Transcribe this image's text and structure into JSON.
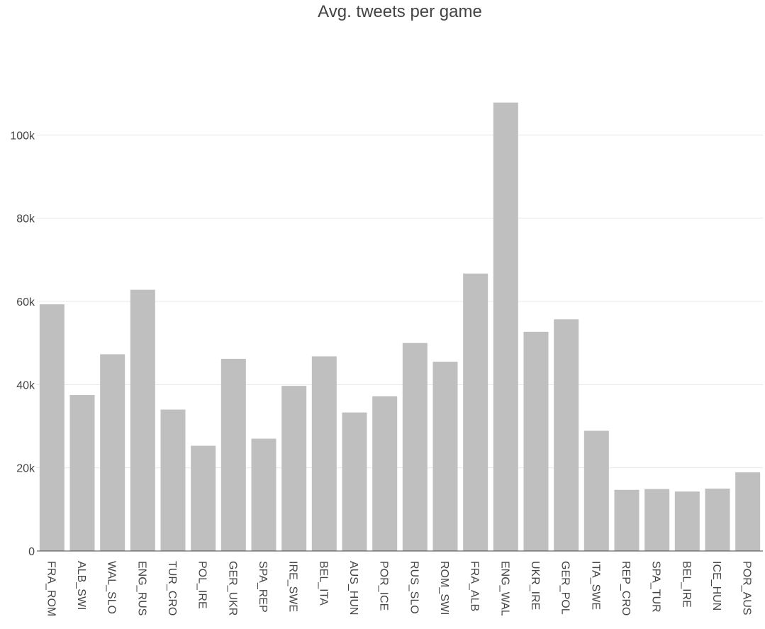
{
  "chart_data": {
    "type": "bar",
    "title": "Avg. tweets per game",
    "xlabel": "",
    "ylabel": "",
    "categories": [
      "FRA_ROM",
      "ALB_SWI",
      "WAL_SLO",
      "ENG_RUS",
      "TUR_CRO",
      "POL_IRE",
      "GER_UKR",
      "SPA_REP",
      "IRE_SWE",
      "BEL_ITA",
      "AUS_HUN",
      "POR_ICE",
      "RUS_SLO",
      "ROM_SWI",
      "FRA_ALB",
      "ENG_WAL",
      "UKR_IRE",
      "GER_POL",
      "ITA_SWE",
      "REP_CRO",
      "SPA_TUR",
      "BEL_IRE",
      "ICE_HUN",
      "POR_AUS"
    ],
    "values": [
      59300,
      37500,
      47300,
      62800,
      34000,
      25300,
      46200,
      27000,
      39700,
      46800,
      33300,
      37200,
      50000,
      45500,
      66700,
      107800,
      52700,
      55700,
      28900,
      14700,
      14900,
      14300,
      15000,
      18900
    ],
    "yticks": [
      0,
      20000,
      40000,
      60000,
      80000,
      100000
    ],
    "ytick_labels": [
      "0",
      "20k",
      "40k",
      "60k",
      "80k",
      "100k"
    ],
    "ylim": [
      0,
      112000
    ],
    "grid": true,
    "bar_color": "#bfbfbf",
    "legend": "none"
  }
}
